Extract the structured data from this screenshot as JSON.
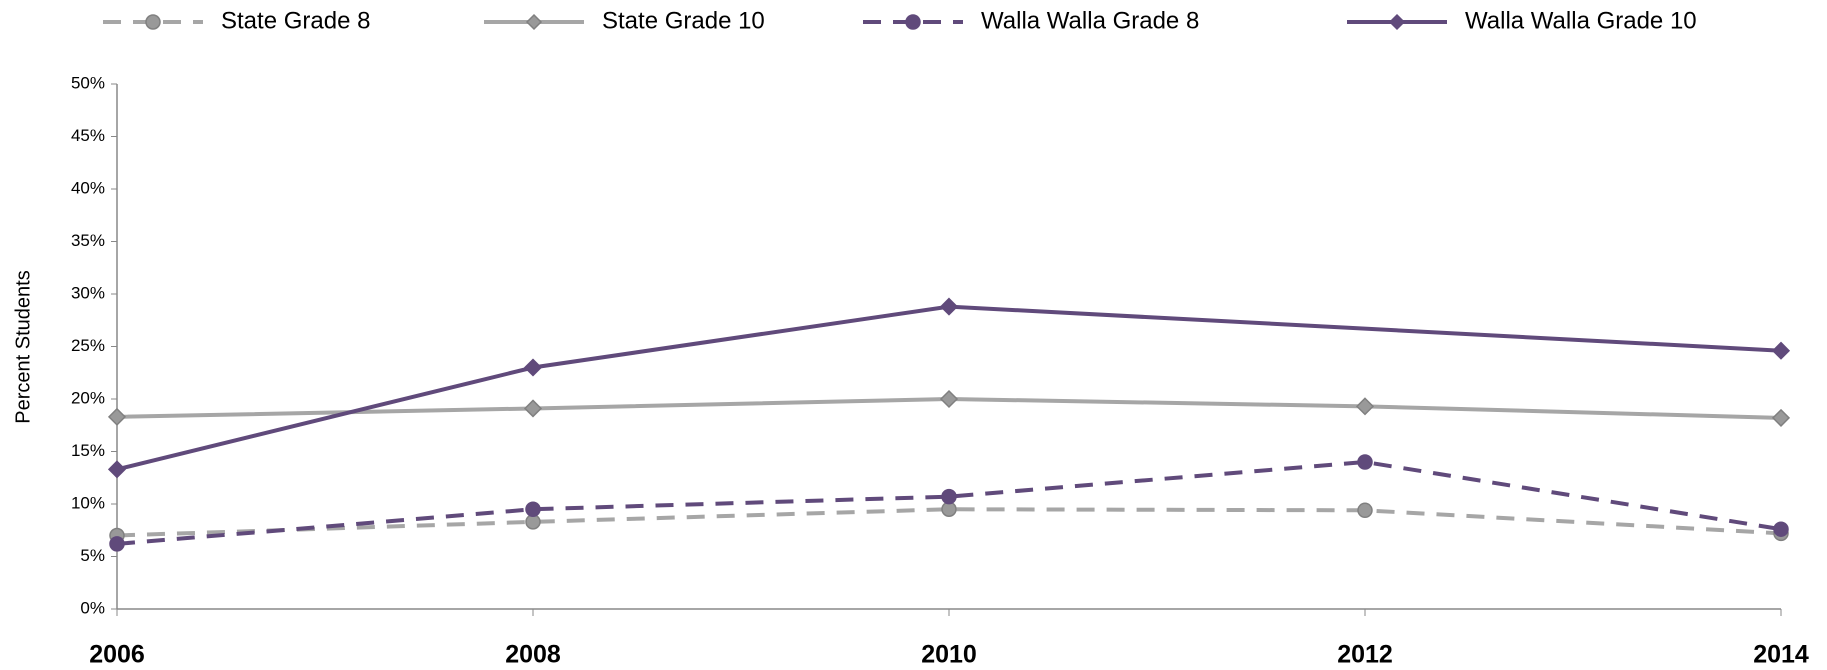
{
  "chart_data": {
    "type": "line",
    "y_label": "Percent Students",
    "xlim": [
      2006,
      2014
    ],
    "xticks": [
      2006,
      2008,
      2010,
      2012,
      2014
    ],
    "ylim": [
      0,
      50
    ],
    "yticks": [
      {
        "value": 0,
        "label": "0%"
      },
      {
        "value": 5,
        "label": "5%"
      },
      {
        "value": 10,
        "label": "10%"
      },
      {
        "value": 15,
        "label": "15%"
      },
      {
        "value": 20,
        "label": "20%"
      },
      {
        "value": 25,
        "label": "25%"
      },
      {
        "value": 30,
        "label": "30%"
      },
      {
        "value": 35,
        "label": "35%"
      },
      {
        "value": 40,
        "label": "40%"
      },
      {
        "value": 45,
        "label": "45%"
      },
      {
        "value": 50,
        "label": "50%"
      }
    ],
    "grid": false,
    "legend": "top",
    "series": [
      {
        "name": "State Grade 8",
        "color": "#a6a6a6",
        "line_style": "dashed",
        "marker": "circle",
        "x": [
          2006,
          2008,
          2010,
          2012,
          2014
        ],
        "values": [
          7,
          8.3,
          9.5,
          9.4,
          7.2
        ]
      },
      {
        "name": "State Grade 10",
        "color": "#a6a6a6",
        "line_style": "solid",
        "marker": "diamond",
        "x": [
          2006,
          2008,
          2010,
          2012,
          2014
        ],
        "values": [
          18.3,
          19.1,
          20,
          19.3,
          18.2
        ]
      },
      {
        "name": "Walla Walla Grade 8",
        "color": "#604a7b",
        "line_style": "dashed",
        "marker": "circle",
        "x": [
          2006,
          2008,
          2010,
          2012,
          2014
        ],
        "values": [
          6.2,
          9.5,
          10.7,
          14,
          7.6
        ]
      },
      {
        "name": "Walla Walla Grade 10",
        "color": "#604a7b",
        "line_style": "solid",
        "marker": "diamond",
        "x": [
          2006,
          2008,
          2010,
          2014
        ],
        "values": [
          13.3,
          23,
          28.8,
          24.6
        ]
      }
    ]
  }
}
